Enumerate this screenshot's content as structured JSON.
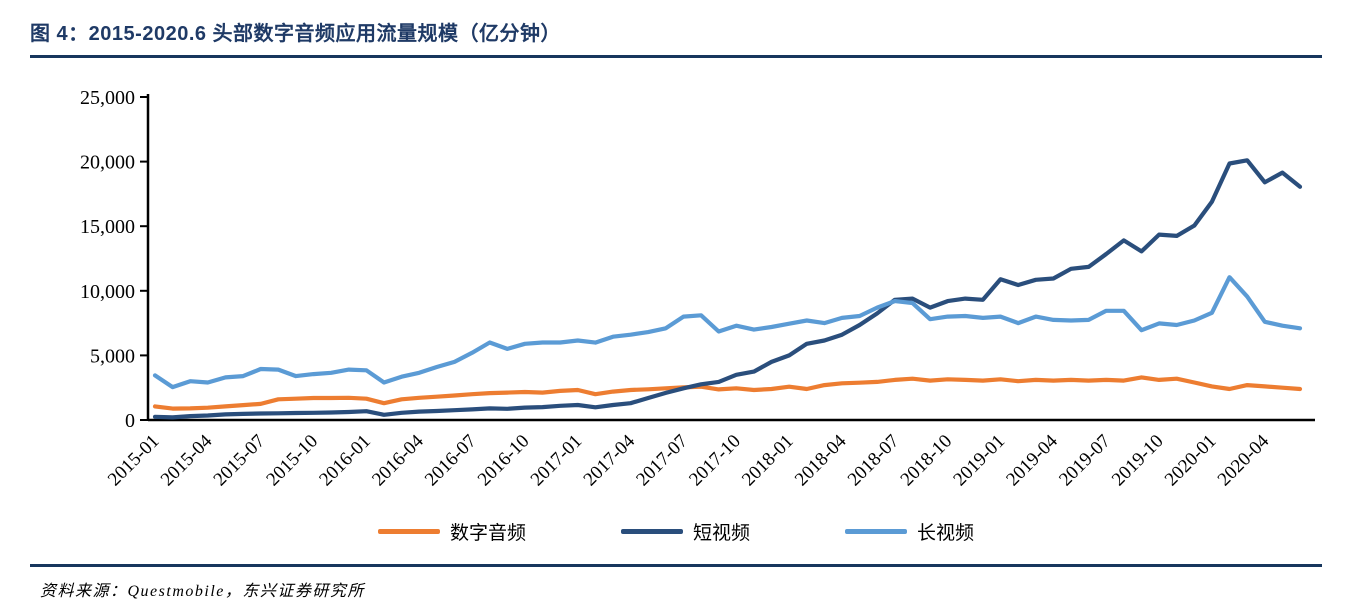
{
  "figure": {
    "title": "图 4：2015-2020.6 头部数字音频应用流量规模（亿分钟）",
    "source": "资料来源：Questmobile，东兴证券研究所"
  },
  "colors": {
    "title": "#1f3a66",
    "rule": "#17365d",
    "axis": "#000000",
    "audio": "#ed7d31",
    "short_video": "#2a4e7c",
    "long_video": "#5b9bd5"
  },
  "chart_data": {
    "type": "line",
    "title": "2015-2020.6 头部数字音频应用流量规模（亿分钟）",
    "xlabel": "",
    "ylabel": "",
    "ylim": [
      0,
      25000
    ],
    "grid": false,
    "legend_position": "bottom",
    "y_ticks": [
      0,
      5000,
      10000,
      15000,
      20000,
      25000
    ],
    "y_tick_labels": [
      "0",
      "5,000",
      "10,000",
      "15,000",
      "20,000",
      "25,000"
    ],
    "x": [
      "2015-01",
      "2015-02",
      "2015-03",
      "2015-04",
      "2015-05",
      "2015-06",
      "2015-07",
      "2015-08",
      "2015-09",
      "2015-10",
      "2015-11",
      "2015-12",
      "2016-01",
      "2016-02",
      "2016-03",
      "2016-04",
      "2016-05",
      "2016-06",
      "2016-07",
      "2016-08",
      "2016-09",
      "2016-10",
      "2016-11",
      "2016-12",
      "2017-01",
      "2017-02",
      "2017-03",
      "2017-04",
      "2017-05",
      "2017-06",
      "2017-07",
      "2017-08",
      "2017-09",
      "2017-10",
      "2017-11",
      "2017-12",
      "2018-01",
      "2018-02",
      "2018-03",
      "2018-04",
      "2018-05",
      "2018-06",
      "2018-07",
      "2018-08",
      "2018-09",
      "2018-10",
      "2018-11",
      "2018-12",
      "2019-01",
      "2019-02",
      "2019-03",
      "2019-04",
      "2019-05",
      "2019-06",
      "2019-07",
      "2019-08",
      "2019-09",
      "2019-10",
      "2019-11",
      "2019-12",
      "2020-01",
      "2020-02",
      "2020-03",
      "2020-04",
      "2020-05",
      "2020-06"
    ],
    "x_tick_labels": [
      "2015-01",
      "2015-04",
      "2015-07",
      "2015-10",
      "2016-01",
      "2016-04",
      "2016-07",
      "2016-10",
      "2017-01",
      "2017-04",
      "2017-07",
      "2017-10",
      "2018-01",
      "2018-04",
      "2018-07",
      "2018-10",
      "2019-01",
      "2019-04",
      "2019-07",
      "2019-10",
      "2020-01",
      "2020-04"
    ],
    "x_tick_step": 3,
    "series": [
      {
        "name": "数字音频",
        "color": "#ed7d31",
        "values": [
          1050,
          880,
          900,
          950,
          1050,
          1150,
          1250,
          1600,
          1650,
          1700,
          1700,
          1720,
          1650,
          1300,
          1600,
          1720,
          1800,
          1900,
          2000,
          2080,
          2120,
          2170,
          2120,
          2250,
          2320,
          2000,
          2200,
          2320,
          2380,
          2450,
          2520,
          2580,
          2370,
          2450,
          2320,
          2400,
          2580,
          2400,
          2700,
          2840,
          2890,
          2950,
          3100,
          3200,
          3050,
          3150,
          3100,
          3050,
          3150,
          3000,
          3100,
          3050,
          3100,
          3050,
          3100,
          3050,
          3300,
          3100,
          3200,
          2900,
          2600,
          2400,
          2700,
          2600,
          2500,
          2400
        ]
      },
      {
        "name": "短视频",
        "color": "#2a4e7c",
        "values": [
          250,
          200,
          300,
          350,
          430,
          470,
          500,
          520,
          540,
          560,
          580,
          620,
          680,
          400,
          560,
          650,
          700,
          760,
          820,
          900,
          870,
          960,
          1000,
          1100,
          1160,
          980,
          1160,
          1300,
          1700,
          2100,
          2450,
          2760,
          2950,
          3500,
          3750,
          4500,
          5000,
          5900,
          6150,
          6600,
          7350,
          8250,
          9300,
          9400,
          8700,
          9200,
          9400,
          9300,
          10900,
          10450,
          10850,
          10950,
          11700,
          11850,
          12850,
          13900,
          13050,
          14350,
          14250,
          15050,
          16900,
          19850,
          20100,
          18400,
          19150,
          18050
        ]
      },
      {
        "name": "长视频",
        "color": "#5b9bd5",
        "values": [
          3450,
          2550,
          3000,
          2900,
          3300,
          3400,
          3950,
          3900,
          3400,
          3550,
          3650,
          3900,
          3850,
          2900,
          3350,
          3650,
          4100,
          4500,
          5200,
          6000,
          5500,
          5900,
          6000,
          6000,
          6150,
          5990,
          6450,
          6600,
          6800,
          7100,
          8000,
          8100,
          6850,
          7300,
          7000,
          7200,
          7450,
          7700,
          7500,
          7900,
          8050,
          8700,
          9200,
          9050,
          7800,
          8000,
          8050,
          7900,
          8000,
          7500,
          8000,
          7750,
          7700,
          7750,
          8450,
          8450,
          6950,
          7480,
          7350,
          7700,
          8300,
          11050,
          9550,
          7600,
          7300,
          7100
        ]
      }
    ]
  }
}
